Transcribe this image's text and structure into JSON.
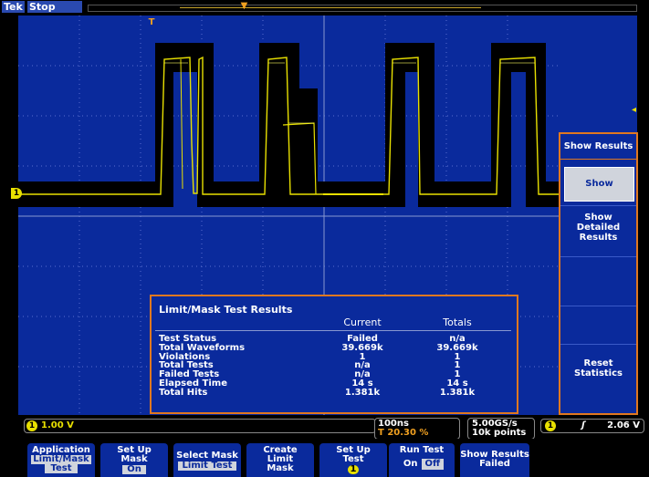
{
  "top": {
    "brand": "Tek",
    "status": "Stop"
  },
  "screen": {
    "trigger_marker": "T",
    "ch1_marker": "1"
  },
  "results_panel": {
    "title": "Limit/Mask Test Results",
    "col_current": "Current",
    "col_totals": "Totals",
    "rows": [
      {
        "label": "Test Status",
        "current": "Failed",
        "totals": "n/a"
      },
      {
        "label": "Total Waveforms",
        "current": "39.669k",
        "totals": "39.669k"
      },
      {
        "label": "Violations",
        "current": "1",
        "totals": "1"
      },
      {
        "label": "Total Tests",
        "current": "n/a",
        "totals": "1"
      },
      {
        "label": "Failed Tests",
        "current": "n/a",
        "totals": "1"
      },
      {
        "label": "Elapsed Time",
        "current": "14 s",
        "totals": "14 s"
      },
      {
        "label": "Total Hits",
        "current": "1.381k",
        "totals": "1.381k"
      }
    ]
  },
  "side_menu": {
    "title": "Show Results",
    "items": [
      {
        "label": "Show Results"
      },
      {
        "line1": "Show",
        "line2": "Detailed",
        "line3": "Results"
      },
      {
        "line1": "Reset",
        "line2": "Statistics"
      }
    ]
  },
  "status": {
    "ch1_channel": "1",
    "ch1_scale": "1.00 V",
    "horiz_scale": "100ns",
    "horiz_pos_icon": "T",
    "horiz_pos": "20.30 %",
    "sample_rate": "5.00GS/s",
    "record_length": "10k points",
    "trigger_channel": "1",
    "trigger_slope": "ʃ",
    "trigger_level": "2.06 V"
  },
  "bottom_menu": {
    "app": {
      "line1": "Application",
      "line2": "Limit/Mask",
      "line3": "Test"
    },
    "setup_mask": {
      "line1": "Set Up",
      "line2": "Mask",
      "value": "On"
    },
    "select_mask": {
      "line1": "Select Mask",
      "line2": "Limit Test"
    },
    "create_limit": {
      "line1": "Create",
      "line2": "Limit",
      "line3": "Mask"
    },
    "setup_test": {
      "line1": "Set Up",
      "line2": "Test",
      "value": "1"
    },
    "run_test": {
      "line1": "Run Test",
      "on": "On",
      "off": "Off"
    },
    "show_results": {
      "line1": "Show Results",
      "line2": "Failed"
    }
  },
  "colors": {
    "graticule_bg": "#0a2a9c",
    "trace": "#e8e000",
    "mask": "#000000",
    "accent": "#e07820"
  }
}
